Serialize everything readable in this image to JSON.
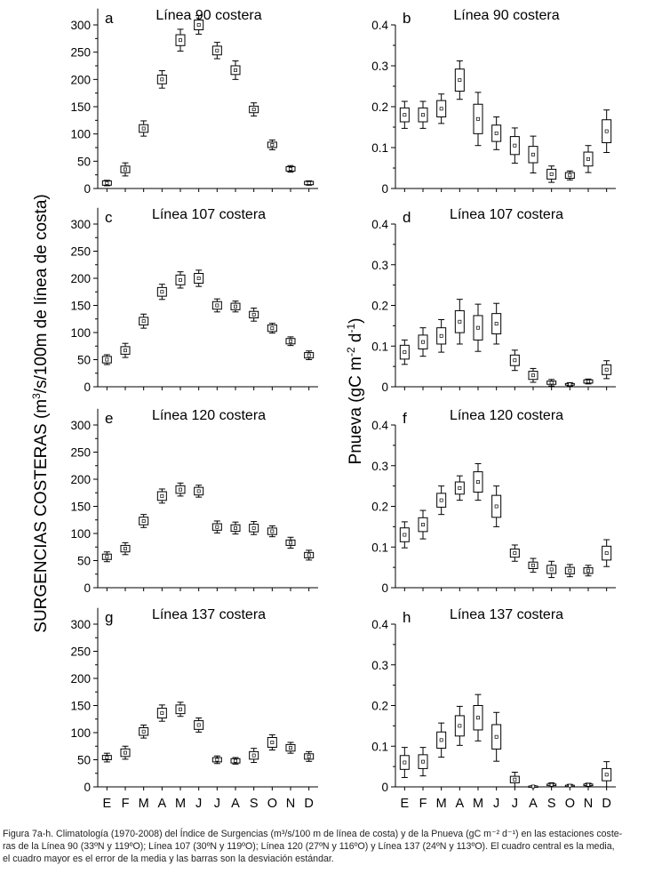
{
  "months": [
    "E",
    "F",
    "M",
    "A",
    "M",
    "J",
    "J",
    "A",
    "S",
    "O",
    "N",
    "D"
  ],
  "left_ylabel": "SURGENCIAS COSTERAS (m³/s/100m de línea de costa)",
  "left_ylabel_parts": {
    "a": "SURGENCIAS COSTERAS (m",
    "sup": "3",
    "b": "/s/100m de línea de costa)"
  },
  "right_ylabel": "Pnueva (gC m-2 d-1)",
  "right_ylabel_parts": {
    "a": "Pnueva (gC m",
    "sup1": "-2",
    "mid": " d",
    "sup2": "-1",
    "end": ")"
  },
  "caption": {
    "line1": "Figura 7a-h. Climatología (1970-2008) del Índice de Surgencias (m³/s/100 m de línea de costa) y de la Pnueva (gC m⁻² d⁻¹) en las estaciones coste-",
    "line2": "ras de la Línea 90 (33ºN y 119ºO); Línea 107 (30ºN y 119ºO); Línea 120 (27ºN y 116ºO) y Línea 137 (24ºN y 113ºO). El cuadro central es la media,",
    "line3": "el cuadro mayor es el error de la media y las barras son la desviación estándar."
  },
  "chart_data": [
    {
      "panel": "a",
      "title": "Línea 90 costera",
      "type": "box",
      "variable": "upwelling",
      "ylim": [
        0,
        330
      ],
      "yticks": [
        "0",
        "50",
        "100",
        "150",
        "200",
        "250",
        "300"
      ],
      "categories": [
        "E",
        "F",
        "M",
        "A",
        "M",
        "J",
        "J",
        "A",
        "S",
        "O",
        "N",
        "D"
      ],
      "mean": [
        10,
        35,
        110,
        200,
        272,
        300,
        253,
        217,
        145,
        80,
        36,
        10
      ],
      "se": [
        4,
        6,
        7,
        8,
        10,
        9,
        8,
        8,
        6,
        5,
        4,
        3
      ],
      "sd": [
        5,
        12,
        14,
        16,
        20,
        17,
        15,
        17,
        12,
        9,
        6,
        4
      ]
    },
    {
      "panel": "b",
      "title": "Línea 90 costera",
      "type": "box",
      "variable": "pnueva",
      "ylim": [
        0,
        0.4
      ],
      "yticks": [
        "0",
        "0.1",
        "0.2",
        "0.3",
        "0.4"
      ],
      "categories": [
        "E",
        "F",
        "M",
        "A",
        "M",
        "J",
        "J",
        "A",
        "S",
        "O",
        "N",
        "D"
      ],
      "mean": [
        0.18,
        0.18,
        0.195,
        0.265,
        0.17,
        0.135,
        0.105,
        0.083,
        0.035,
        0.032,
        0.072,
        0.14
      ],
      "se": [
        0.017,
        0.017,
        0.02,
        0.027,
        0.036,
        0.02,
        0.022,
        0.02,
        0.012,
        0.007,
        0.017,
        0.028
      ],
      "sd": [
        0.033,
        0.033,
        0.036,
        0.047,
        0.065,
        0.04,
        0.043,
        0.045,
        0.02,
        0.011,
        0.033,
        0.052
      ]
    },
    {
      "panel": "c",
      "title": "Línea 107 costera",
      "type": "box",
      "variable": "upwelling",
      "ylim": [
        0,
        330
      ],
      "yticks": [
        "0",
        "50",
        "100",
        "150",
        "200",
        "250",
        "300"
      ],
      "categories": [
        "E",
        "F",
        "M",
        "A",
        "M",
        "J",
        "J",
        "A",
        "S",
        "O",
        "N",
        "D"
      ],
      "mean": [
        50,
        67,
        121,
        175,
        197,
        200,
        150,
        148,
        133,
        108,
        84,
        58
      ],
      "se": [
        6,
        7,
        7,
        8,
        9,
        9,
        7,
        6,
        6,
        6,
        5,
        5
      ],
      "sd": [
        9,
        13,
        13,
        14,
        15,
        15,
        12,
        10,
        12,
        9,
        8,
        8
      ]
    },
    {
      "panel": "d",
      "title": "Línea 107 costera",
      "type": "box",
      "variable": "pnueva",
      "ylim": [
        0,
        0.4
      ],
      "yticks": [
        "0",
        "0.1",
        "0.2",
        "0.3",
        "0.4"
      ],
      "categories": [
        "E",
        "F",
        "M",
        "A",
        "M",
        "J",
        "J",
        "A",
        "S",
        "O",
        "N",
        "D"
      ],
      "mean": [
        0.085,
        0.11,
        0.125,
        0.16,
        0.145,
        0.155,
        0.065,
        0.028,
        0.01,
        0.006,
        0.013,
        0.042
      ],
      "se": [
        0.017,
        0.017,
        0.02,
        0.027,
        0.03,
        0.025,
        0.013,
        0.01,
        0.004,
        0.002,
        0.004,
        0.012
      ],
      "sd": [
        0.03,
        0.035,
        0.04,
        0.055,
        0.058,
        0.05,
        0.025,
        0.017,
        0.008,
        0.004,
        0.006,
        0.022
      ]
    },
    {
      "panel": "e",
      "title": "Línea 120 costera",
      "type": "box",
      "variable": "upwelling",
      "ylim": [
        0,
        330
      ],
      "yticks": [
        "0",
        "50",
        "100",
        "150",
        "200",
        "250",
        "300"
      ],
      "categories": [
        "E",
        "F",
        "M",
        "A",
        "M",
        "J",
        "J",
        "A",
        "S",
        "O",
        "N",
        "D"
      ],
      "mean": [
        57,
        72,
        123,
        169,
        181,
        178,
        112,
        110,
        110,
        104,
        83,
        60
      ],
      "se": [
        5,
        6,
        7,
        8,
        7,
        7,
        6,
        6,
        7,
        6,
        5,
        5
      ],
      "sd": [
        9,
        11,
        12,
        13,
        12,
        11,
        11,
        11,
        12,
        10,
        10,
        9
      ]
    },
    {
      "panel": "f",
      "title": "Línea 120 costera",
      "type": "box",
      "variable": "pnueva",
      "ylim": [
        0,
        0.4
      ],
      "yticks": [
        "0",
        "0.1",
        "0.2",
        "0.3",
        "0.4"
      ],
      "categories": [
        "E",
        "F",
        "M",
        "A",
        "M",
        "J",
        "J",
        "A",
        "S",
        "O",
        "N",
        "D"
      ],
      "mean": [
        0.13,
        0.155,
        0.215,
        0.245,
        0.26,
        0.2,
        0.085,
        0.055,
        0.045,
        0.042,
        0.042,
        0.085
      ],
      "se": [
        0.017,
        0.017,
        0.017,
        0.015,
        0.025,
        0.027,
        0.01,
        0.008,
        0.01,
        0.008,
        0.007,
        0.017
      ],
      "sd": [
        0.032,
        0.035,
        0.035,
        0.03,
        0.045,
        0.05,
        0.02,
        0.017,
        0.02,
        0.015,
        0.013,
        0.033
      ]
    },
    {
      "panel": "g",
      "title": "Línea 137 costera",
      "type": "box",
      "variable": "upwelling",
      "ylim": [
        0,
        330
      ],
      "yticks": [
        "0",
        "50",
        "100",
        "150",
        "200",
        "250",
        "300"
      ],
      "categories": [
        "E",
        "F",
        "M",
        "A",
        "M",
        "J",
        "J",
        "A",
        "S",
        "O",
        "N",
        "D"
      ],
      "mean": [
        54,
        63,
        102,
        136,
        143,
        114,
        50,
        48,
        58,
        82,
        72,
        56
      ],
      "se": [
        4,
        7,
        7,
        9,
        8,
        8,
        4,
        4,
        7,
        9,
        6,
        5
      ],
      "sd": [
        8,
        12,
        12,
        15,
        13,
        13,
        7,
        6,
        13,
        14,
        10,
        9
      ]
    },
    {
      "panel": "h",
      "title": "Línea 137 costera",
      "type": "box",
      "variable": "pnueva",
      "ylim": [
        0,
        0.4
      ],
      "yticks": [
        "0",
        "0.1",
        "0.2",
        "0.3",
        "0.4"
      ],
      "categories": [
        "E",
        "F",
        "M",
        "A",
        "M",
        "J",
        "J",
        "A",
        "S",
        "O",
        "N",
        "D"
      ],
      "mean": [
        0.06,
        0.062,
        0.115,
        0.15,
        0.17,
        0.123,
        0.018,
        0.001,
        0.005,
        0.003,
        0.005,
        0.03
      ],
      "se": [
        0.017,
        0.017,
        0.02,
        0.025,
        0.03,
        0.03,
        0.008,
        0.001,
        0.002,
        0.001,
        0.002,
        0.015
      ],
      "sd": [
        0.037,
        0.035,
        0.042,
        0.048,
        0.057,
        0.06,
        0.018,
        0.002,
        0.005,
        0.003,
        0.004,
        0.032
      ]
    }
  ]
}
